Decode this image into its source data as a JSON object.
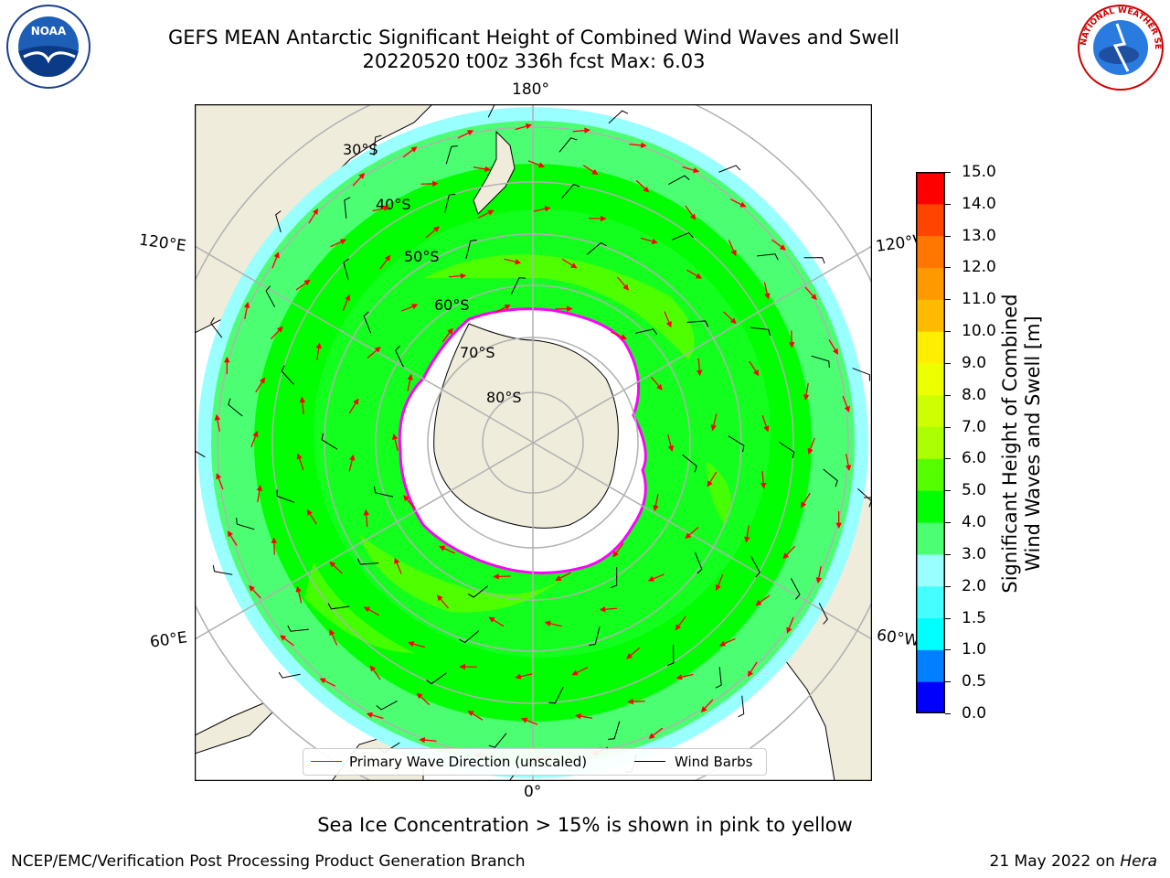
{
  "header": {
    "title_line1": "GEFS MEAN Antarctic Significant Height of Combined Wind Waves and Swell",
    "title_line2": "20220520 t00z 336h fcst   Max: 6.03"
  },
  "logos": {
    "noaa": {
      "text": "NOAA"
    },
    "nws": {
      "text": "NATIONAL WEATHER SERVICE"
    }
  },
  "map": {
    "longitude_labels": {
      "top": "180°",
      "bottom": "0°",
      "upper_left": "120°E",
      "upper_right": "120°W",
      "lower_left": "60°E",
      "lower_right": "60°W"
    },
    "latitude_labels": [
      "30°S",
      "40°S",
      "50°S",
      "60°S",
      "70°S",
      "80°S"
    ],
    "colors": {
      "land": "#efecdc",
      "ice": "#ffffff",
      "coast": "#000000",
      "grid": "#b0b0b0",
      "arrow": "#ff0000",
      "barb": "#000000",
      "sea_ice_edge": [
        "#ff00ff",
        "#ff66cc",
        "#ffaa00"
      ]
    }
  },
  "legend": {
    "wave_direction": "Primary Wave Direction (unscaled)",
    "wind_barbs": "Wind Barbs"
  },
  "colorbar": {
    "title_line1": "Significant Height of Combined",
    "title_line2": "Wind Waves and Swell [m]",
    "tick_labels": [
      "15.0",
      "14.0",
      "13.0",
      "12.0",
      "11.0",
      "10.0",
      "9.0",
      "8.0",
      "7.0",
      "6.0",
      "5.0",
      "4.0",
      "3.0",
      "2.0",
      "1.5",
      "1.0",
      "0.5",
      "0.0"
    ],
    "bins": [
      {
        "from": 0.0,
        "to": 0.5,
        "color": "#0000ff"
      },
      {
        "from": 0.5,
        "to": 1.0,
        "color": "#0080ff"
      },
      {
        "from": 1.0,
        "to": 1.5,
        "color": "#00ffff"
      },
      {
        "from": 1.5,
        "to": 2.0,
        "color": "#44ffff"
      },
      {
        "from": 2.0,
        "to": 3.0,
        "color": "#99ffff"
      },
      {
        "from": 3.0,
        "to": 4.0,
        "color": "#4cff72"
      },
      {
        "from": 4.0,
        "to": 5.0,
        "color": "#00ff00"
      },
      {
        "from": 5.0,
        "to": 6.0,
        "color": "#55ff00"
      },
      {
        "from": 6.0,
        "to": 7.0,
        "color": "#aaff00"
      },
      {
        "from": 7.0,
        "to": 8.0,
        "color": "#ccff00"
      },
      {
        "from": 8.0,
        "to": 9.0,
        "color": "#eeff00"
      },
      {
        "from": 9.0,
        "to": 10.0,
        "color": "#ffee00"
      },
      {
        "from": 10.0,
        "to": 11.0,
        "color": "#ffbb00"
      },
      {
        "from": 11.0,
        "to": 12.0,
        "color": "#ff9900"
      },
      {
        "from": 12.0,
        "to": 13.0,
        "color": "#ff7700"
      },
      {
        "from": 13.0,
        "to": 14.0,
        "color": "#ff4400"
      },
      {
        "from": 14.0,
        "to": 15.0,
        "color": "#ff0000"
      }
    ]
  },
  "note": "Sea Ice Concentration > 15% is shown in pink to yellow",
  "footer": {
    "left": "NCEP/EMC/Verification Post Processing Product Generation Branch",
    "date": "21 May 2022 on",
    "machine": "Hera"
  }
}
